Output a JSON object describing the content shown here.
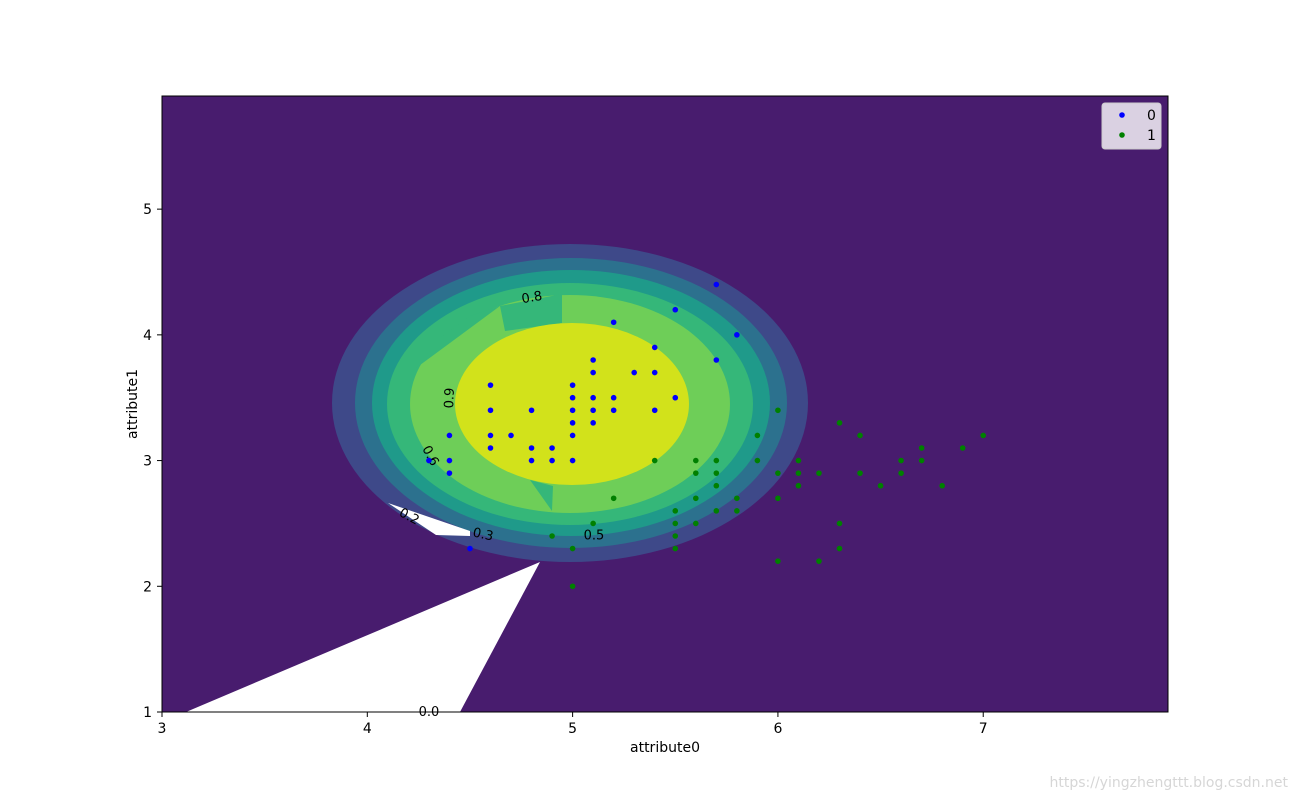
{
  "watermark": "https://yingzhengttt.blog.csdn.net",
  "chart_data": {
    "type": "scatter",
    "xlabel": "attribute0",
    "ylabel": "attribute1",
    "xlim": [
      3,
      7.9
    ],
    "ylim": [
      1,
      5.9
    ],
    "xticks": [
      3,
      4,
      5,
      6,
      7
    ],
    "yticks": [
      1,
      2,
      3,
      4,
      5
    ],
    "grid": false,
    "legend": {
      "placement": "upper right"
    },
    "contour": {
      "labels": [
        "0.0",
        "0.2",
        "0.3",
        "0.5",
        "0.6",
        "0.8",
        "0.9"
      ],
      "fill_colors": [
        "#481c6e",
        "#3e4989",
        "#2c718e",
        "#1f9a8a",
        "#35b779",
        "#6ece58",
        "#d2e21b"
      ],
      "below_range_fill": "#ffffff"
    },
    "series": [
      {
        "name": "0",
        "color": "#0000ff",
        "points": [
          [
            4.3,
            3.0
          ],
          [
            4.4,
            2.9
          ],
          [
            4.4,
            3.0
          ],
          [
            4.4,
            3.2
          ],
          [
            4.5,
            2.3
          ],
          [
            4.6,
            3.1
          ],
          [
            4.6,
            3.2
          ],
          [
            4.6,
            3.4
          ],
          [
            4.6,
            3.6
          ],
          [
            4.7,
            3.2
          ],
          [
            4.8,
            3.0
          ],
          [
            4.8,
            3.1
          ],
          [
            4.8,
            3.4
          ],
          [
            4.9,
            3.0
          ],
          [
            4.9,
            3.1
          ],
          [
            5.0,
            3.0
          ],
          [
            5.0,
            3.2
          ],
          [
            5.0,
            3.3
          ],
          [
            5.0,
            3.4
          ],
          [
            5.0,
            3.5
          ],
          [
            5.0,
            3.6
          ],
          [
            5.1,
            3.3
          ],
          [
            5.1,
            3.4
          ],
          [
            5.1,
            3.5
          ],
          [
            5.1,
            3.7
          ],
          [
            5.1,
            3.8
          ],
          [
            5.2,
            3.4
          ],
          [
            5.2,
            3.5
          ],
          [
            5.2,
            4.1
          ],
          [
            5.3,
            3.7
          ],
          [
            5.4,
            3.4
          ],
          [
            5.4,
            3.7
          ],
          [
            5.4,
            3.9
          ],
          [
            5.5,
            3.5
          ],
          [
            5.5,
            4.2
          ],
          [
            5.7,
            3.8
          ],
          [
            5.7,
            4.4
          ],
          [
            5.8,
            4.0
          ]
        ]
      },
      {
        "name": "1",
        "color": "#008000",
        "points": [
          [
            4.9,
            2.4
          ],
          [
            5.0,
            2.0
          ],
          [
            5.0,
            2.3
          ],
          [
            5.1,
            2.5
          ],
          [
            5.2,
            2.7
          ],
          [
            5.4,
            3.0
          ],
          [
            5.5,
            2.3
          ],
          [
            5.5,
            2.4
          ],
          [
            5.5,
            2.5
          ],
          [
            5.5,
            2.6
          ],
          [
            5.6,
            2.5
          ],
          [
            5.6,
            2.7
          ],
          [
            5.6,
            2.9
          ],
          [
            5.6,
            3.0
          ],
          [
            5.7,
            2.6
          ],
          [
            5.7,
            2.8
          ],
          [
            5.7,
            2.9
          ],
          [
            5.7,
            3.0
          ],
          [
            5.8,
            2.6
          ],
          [
            5.8,
            2.7
          ],
          [
            5.9,
            3.0
          ],
          [
            5.9,
            3.2
          ],
          [
            6.0,
            2.2
          ],
          [
            6.0,
            2.7
          ],
          [
            6.0,
            2.9
          ],
          [
            6.0,
            3.4
          ],
          [
            6.1,
            2.8
          ],
          [
            6.1,
            2.9
          ],
          [
            6.1,
            3.0
          ],
          [
            6.2,
            2.2
          ],
          [
            6.2,
            2.9
          ],
          [
            6.3,
            2.3
          ],
          [
            6.3,
            2.5
          ],
          [
            6.3,
            3.3
          ],
          [
            6.4,
            2.9
          ],
          [
            6.4,
            3.2
          ],
          [
            6.5,
            2.8
          ],
          [
            6.6,
            2.9
          ],
          [
            6.6,
            3.0
          ],
          [
            6.7,
            3.0
          ],
          [
            6.7,
            3.1
          ],
          [
            6.8,
            2.8
          ],
          [
            6.9,
            3.1
          ],
          [
            7.0,
            3.2
          ]
        ]
      }
    ]
  }
}
